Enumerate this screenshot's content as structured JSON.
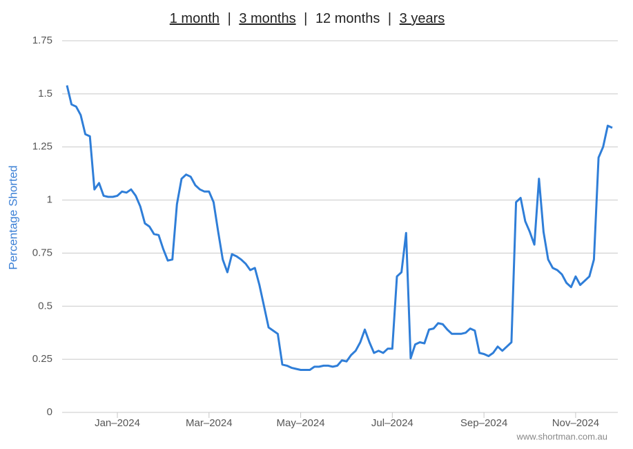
{
  "header": {
    "periods": [
      "1 month",
      "3 months",
      "12 months",
      "3 years"
    ],
    "separator": "|"
  },
  "chart_data": {
    "type": "line",
    "y_label": "Percentage Shorted",
    "categories": [
      null,
      null,
      null,
      null,
      null,
      null,
      null,
      null,
      null,
      null,
      null,
      "Jan–2024",
      null,
      null,
      null,
      null,
      null,
      null,
      null,
      null,
      null,
      null,
      null,
      null,
      null,
      null,
      null,
      null,
      null,
      null,
      null,
      "Mar–2024",
      null,
      null,
      null,
      null,
      null,
      null,
      null,
      null,
      null,
      null,
      null,
      null,
      null,
      null,
      null,
      null,
      null,
      null,
      null,
      "May–2024",
      null,
      null,
      null,
      null,
      null,
      null,
      null,
      null,
      null,
      null,
      null,
      null,
      null,
      null,
      null,
      null,
      null,
      null,
      null,
      "Jul–2024",
      null,
      null,
      null,
      null,
      null,
      null,
      null,
      null,
      null,
      null,
      null,
      null,
      null,
      null,
      null,
      null,
      null,
      null,
      null,
      "Sep–2024",
      null,
      null,
      null,
      null,
      null,
      null,
      null,
      null,
      null,
      null,
      null,
      null,
      null,
      null,
      null,
      null,
      null,
      null,
      null,
      "Nov–2024",
      null,
      null,
      null,
      null,
      null,
      null,
      null,
      null
    ],
    "series": [
      {
        "color": "#2f7ed8",
        "values": [
          1.54,
          1.45,
          1.44,
          1.4,
          1.31,
          1.3,
          1.05,
          1.08,
          1.02,
          1.015,
          1.015,
          1.02,
          1.04,
          1.035,
          1.05,
          1.02,
          0.97,
          0.89,
          0.875,
          0.84,
          0.835,
          0.77,
          0.715,
          0.72,
          0.98,
          1.1,
          1.12,
          1.11,
          1.07,
          1.05,
          1.04,
          1.04,
          0.99,
          0.85,
          0.72,
          0.66,
          0.745,
          0.735,
          0.72,
          0.7,
          0.67,
          0.68,
          0.6,
          0.5,
          0.4,
          0.385,
          0.37,
          0.225,
          0.22,
          0.21,
          0.205,
          0.2,
          0.2,
          0.2,
          0.215,
          0.215,
          0.22,
          0.22,
          0.215,
          0.22,
          0.245,
          0.24,
          0.27,
          0.29,
          0.33,
          0.39,
          0.33,
          0.28,
          0.29,
          0.28,
          0.3,
          0.3,
          0.64,
          0.66,
          0.845,
          0.255,
          0.32,
          0.33,
          0.325,
          0.39,
          0.395,
          0.42,
          0.415,
          0.39,
          0.37,
          0.37,
          0.37,
          0.375,
          0.395,
          0.385,
          0.28,
          0.275,
          0.265,
          0.28,
          0.31,
          0.29,
          0.31,
          0.33,
          0.99,
          1.01,
          0.9,
          0.85,
          0.79,
          1.1,
          0.85,
          0.72,
          0.68,
          0.67,
          0.65,
          0.61,
          0.59,
          0.64,
          0.6,
          0.62,
          0.64,
          0.72,
          1.2,
          1.25,
          1.35,
          1.34
        ]
      }
    ],
    "ylim": [
      0,
      1.75
    ],
    "yticks": [
      0,
      0.25,
      0.5,
      0.75,
      1,
      1.25,
      1.5,
      1.75
    ],
    "grid": true
  },
  "footer": "www.shortman.com.au"
}
